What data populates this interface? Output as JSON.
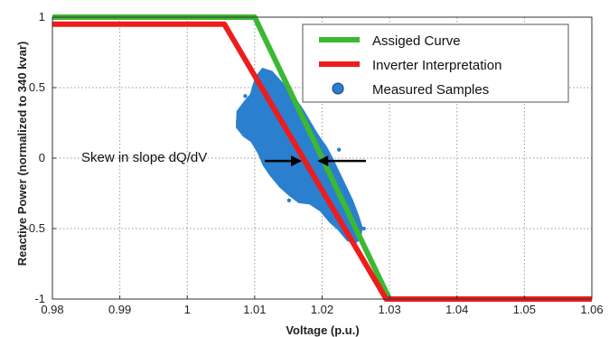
{
  "chart_data": {
    "type": "line",
    "title": "",
    "xlabel": "Voltage (p.u.)",
    "ylabel": "Reactive Power (normalized to 340 kvar)",
    "xlim": [
      0.98,
      1.06
    ],
    "ylim": [
      -1,
      1
    ],
    "x_ticks": [
      0.98,
      0.99,
      1,
      1.01,
      1.02,
      1.03,
      1.04,
      1.05,
      1.06
    ],
    "x_tick_labels": [
      "0.98",
      "0.99",
      "1",
      "1.01",
      "1.02",
      "1.03",
      "1.04",
      "1.05",
      "1.06"
    ],
    "y_ticks": [
      -1,
      -0.5,
      0,
      0.5,
      1
    ],
    "y_tick_labels": [
      "-1",
      "-0.5",
      "0",
      "0.5",
      "1"
    ],
    "grid": true,
    "legend_position": "top-right",
    "series": [
      {
        "name": "Assiged Curve",
        "color": "#3cb832",
        "x": [
          0.98,
          1.01,
          1.03,
          1.06
        ],
        "y": [
          1,
          1,
          -1,
          -1
        ]
      },
      {
        "name": "Inverter Interpretation",
        "color": "#ee1c1c",
        "x": [
          0.98,
          1.0055,
          1.0295,
          1.06
        ],
        "y": [
          0.95,
          0.95,
          -1,
          -1
        ]
      }
    ],
    "scatter": {
      "name": "Measured Samples",
      "color": "#2a7fcf",
      "cluster_polygon": {
        "x": [
          1.0095,
          1.0102,
          1.0112,
          1.0125,
          1.0142,
          1.0158,
          1.0172,
          1.0188,
          1.0196,
          1.0205,
          1.0214,
          1.0222,
          1.0232,
          1.0244,
          1.0252,
          1.0258,
          1.0256,
          1.0248,
          1.0238,
          1.0224,
          1.0212,
          1.0198,
          1.0182,
          1.0166,
          1.0152,
          1.0138,
          1.0124,
          1.0114,
          1.0106,
          1.0096,
          1.0084,
          1.0074,
          1.0075,
          1.0086
        ],
        "y": [
          0.45,
          0.57,
          0.63,
          0.61,
          0.52,
          0.43,
          0.33,
          0.2,
          0.14,
          0.08,
          0.0,
          -0.08,
          -0.18,
          -0.3,
          -0.4,
          -0.49,
          -0.57,
          -0.6,
          -0.58,
          -0.5,
          -0.45,
          -0.37,
          -0.32,
          -0.31,
          -0.26,
          -0.2,
          -0.12,
          -0.05,
          0.04,
          0.12,
          0.16,
          0.22,
          0.33,
          0.4
        ]
      },
      "stray_points": {
        "x": [
          1.0075,
          1.0086,
          1.0248,
          1.0262,
          1.0253,
          1.0151,
          1.0225
        ],
        "y": [
          0.26,
          0.44,
          -0.42,
          -0.5,
          -0.56,
          -0.3,
          0.06
        ]
      }
    },
    "annotation": {
      "text": "Skew in slope dQ/dV",
      "arrow_right": {
        "x_from": 1.0115,
        "x_to": 1.017,
        "y": -0.02
      },
      "arrow_left": {
        "x_from": 1.0265,
        "x_to": 1.0193,
        "y": -0.02
      }
    }
  }
}
